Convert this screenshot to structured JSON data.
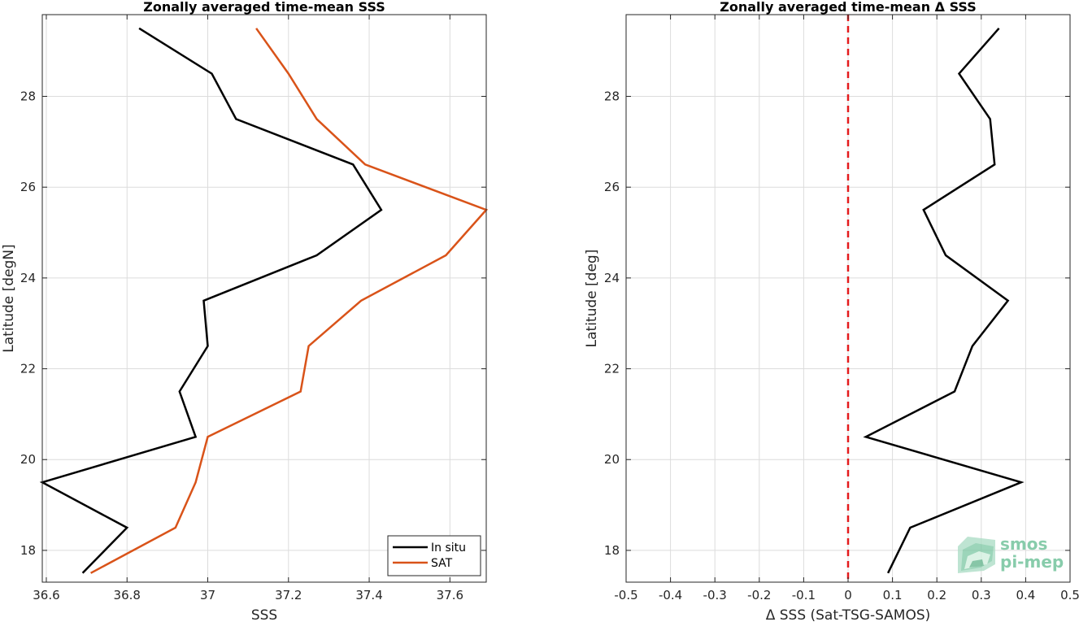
{
  "chart_data": [
    {
      "type": "line",
      "title": "Zonally averaged time-mean SSS",
      "xlabel": "SSS",
      "ylabel": "Latitude [degN]",
      "xlim": [
        36.59,
        37.69
      ],
      "ylim": [
        17.3,
        29.8
      ],
      "xticks": [
        36.6,
        36.8,
        37,
        37.2,
        37.4,
        37.6
      ],
      "xtick_labels": [
        "36.6",
        "36.8",
        "37",
        "37.2",
        "37.4",
        "37.6"
      ],
      "yticks": [
        18,
        20,
        22,
        24,
        26,
        28
      ],
      "ytick_labels": [
        "18",
        "20",
        "22",
        "24",
        "26",
        "28"
      ],
      "grid": true,
      "legend_position": "bottom-right",
      "series": [
        {
          "name": "In situ",
          "color": "#000000",
          "x": [
            36.69,
            36.8,
            36.59,
            36.97,
            36.93,
            37.0,
            36.99,
            37.27,
            37.43,
            37.36,
            37.07,
            37.01,
            36.83
          ],
          "y": [
            17.5,
            18.5,
            19.5,
            20.5,
            21.5,
            22.5,
            23.5,
            24.5,
            25.5,
            26.5,
            27.5,
            28.5,
            29.5
          ]
        },
        {
          "name": "SAT",
          "color": "#d95319",
          "x": [
            36.71,
            36.92,
            36.97,
            37.0,
            37.23,
            37.25,
            37.38,
            37.59,
            37.69,
            37.39,
            37.27,
            37.2,
            37.12
          ],
          "y": [
            17.5,
            18.5,
            19.5,
            20.5,
            21.5,
            22.5,
            23.5,
            24.5,
            25.5,
            26.5,
            27.5,
            28.5,
            29.5
          ]
        }
      ]
    },
    {
      "type": "line",
      "title": "Zonally averaged time-mean Δ SSS",
      "xlabel": "Δ SSS (Sat-TSG-SAMOS)",
      "ylabel": "Latitude [deg]",
      "xlim": [
        -0.5,
        0.5
      ],
      "ylim": [
        17.3,
        29.8
      ],
      "xticks": [
        -0.5,
        -0.4,
        -0.3,
        -0.2,
        -0.1,
        0,
        0.1,
        0.2,
        0.3,
        0.4,
        0.5
      ],
      "xtick_labels": [
        "-0.5",
        "-0.4",
        "-0.3",
        "-0.2",
        "-0.1",
        "0",
        "0.1",
        "0.2",
        "0.3",
        "0.4",
        "0.5"
      ],
      "yticks": [
        18,
        20,
        22,
        24,
        26,
        28
      ],
      "ytick_labels": [
        "18",
        "20",
        "22",
        "24",
        "26",
        "28"
      ],
      "grid": true,
      "reference_line": {
        "x": 0,
        "color": "#e41a1c",
        "style": "dashed"
      },
      "series": [
        {
          "color": "#000000",
          "x": [
            0.09,
            0.14,
            0.39,
            0.04,
            0.24,
            0.28,
            0.36,
            0.22,
            0.17,
            0.33,
            0.32,
            0.25,
            0.34
          ],
          "y": [
            17.5,
            18.5,
            19.5,
            20.5,
            21.5,
            22.5,
            23.5,
            24.5,
            25.5,
            26.5,
            27.5,
            28.5,
            29.5
          ]
        }
      ]
    }
  ],
  "logo": {
    "line1": "smos",
    "line2": "pi-mep",
    "color": "#7cc7a3"
  }
}
